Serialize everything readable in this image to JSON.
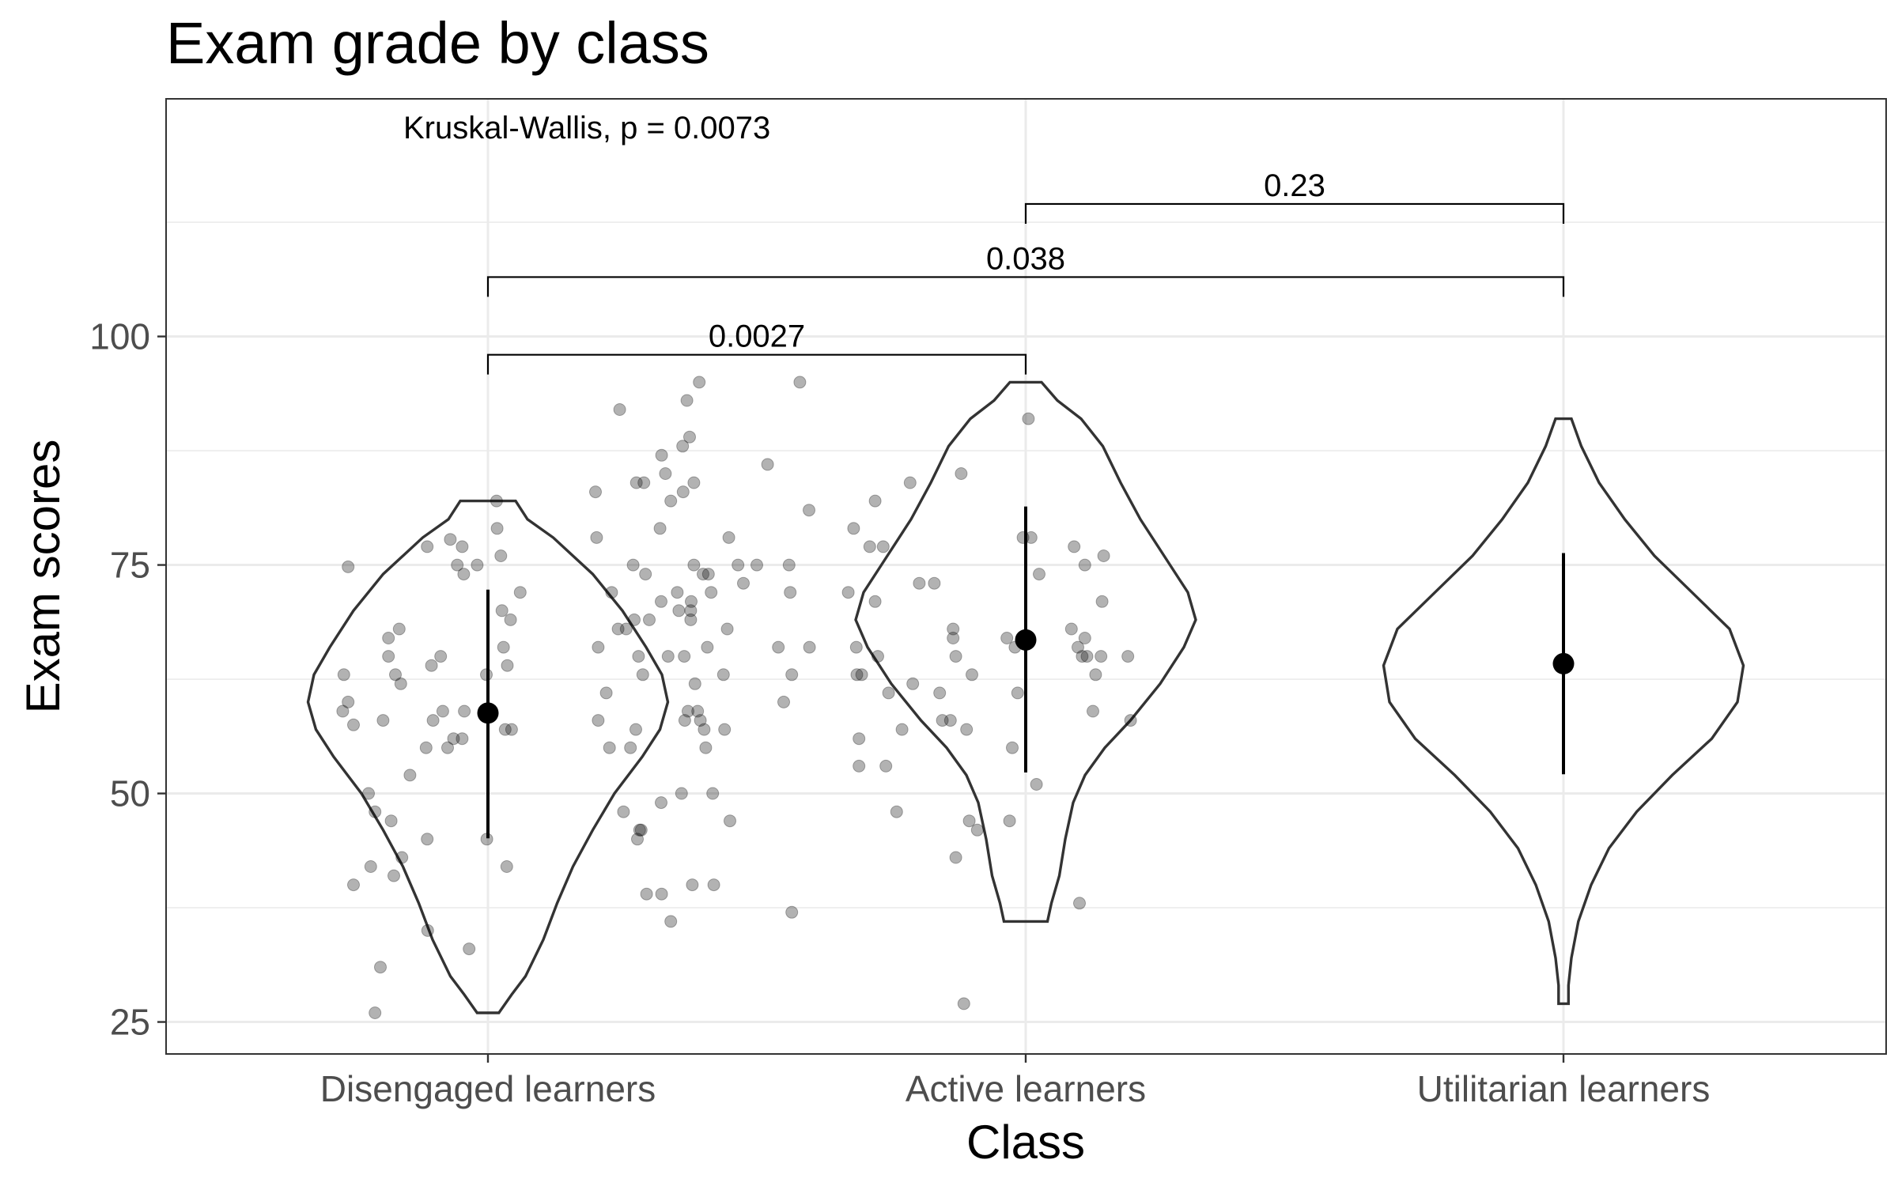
{
  "chart_data": {
    "type": "violin",
    "title": "Exam grade by class",
    "xlabel": "Class",
    "ylabel": "Exam scores",
    "ylim": [
      21.5,
      126
    ],
    "yticks": [
      25,
      50,
      75,
      100
    ],
    "grid": true,
    "categories": [
      "Disengaged learners",
      "Active learners",
      "Utilitarian learners"
    ],
    "test_label": "Kruskal-Wallis, p = 0.0073",
    "comparisons": [
      {
        "from": 0,
        "to": 1,
        "label": "0.0027",
        "y": 98
      },
      {
        "from": 0,
        "to": 2,
        "label": "0.038",
        "y": 106.5
      },
      {
        "from": 1,
        "to": 2,
        "label": "0.23",
        "y": 114.5
      }
    ],
    "summary": [
      {
        "mean": 58.8,
        "low": 45.1,
        "high": 72.3
      },
      {
        "mean": 66.8,
        "low": 52.3,
        "high": 81.4
      },
      {
        "mean": 64.2,
        "low": 52.1,
        "high": 76.3
      }
    ],
    "violins": [
      {
        "min": 26,
        "max": 82,
        "profile": [
          [
            26,
            0.055
          ],
          [
            28,
            0.12
          ],
          [
            30,
            0.19
          ],
          [
            34,
            0.28
          ],
          [
            38,
            0.35
          ],
          [
            42,
            0.43
          ],
          [
            46,
            0.53
          ],
          [
            50,
            0.64
          ],
          [
            54,
            0.78
          ],
          [
            57,
            0.87
          ],
          [
            60,
            0.91
          ],
          [
            63,
            0.88
          ],
          [
            66,
            0.8
          ],
          [
            70,
            0.68
          ],
          [
            74,
            0.53
          ],
          [
            78,
            0.33
          ],
          [
            80,
            0.2
          ],
          [
            82,
            0.14
          ]
        ]
      },
      {
        "min": 36,
        "max": 95,
        "profile": [
          [
            36,
            0.11
          ],
          [
            38,
            0.13
          ],
          [
            41,
            0.17
          ],
          [
            45,
            0.2
          ],
          [
            49,
            0.24
          ],
          [
            52,
            0.3
          ],
          [
            55,
            0.4
          ],
          [
            58,
            0.53
          ],
          [
            62,
            0.68
          ],
          [
            66,
            0.8
          ],
          [
            69,
            0.86
          ],
          [
            72,
            0.82
          ],
          [
            76,
            0.7
          ],
          [
            80,
            0.58
          ],
          [
            84,
            0.48
          ],
          [
            88,
            0.39
          ],
          [
            91,
            0.28
          ],
          [
            93,
            0.16
          ],
          [
            95,
            0.08
          ]
        ]
      },
      {
        "min": 27,
        "max": 91,
        "profile": [
          [
            27,
            0.025
          ],
          [
            29,
            0.025
          ],
          [
            32,
            0.04
          ],
          [
            36,
            0.075
          ],
          [
            40,
            0.14
          ],
          [
            44,
            0.23
          ],
          [
            48,
            0.37
          ],
          [
            52,
            0.55
          ],
          [
            56,
            0.75
          ],
          [
            60,
            0.88
          ],
          [
            64,
            0.91
          ],
          [
            68,
            0.84
          ],
          [
            72,
            0.65
          ],
          [
            76,
            0.46
          ],
          [
            80,
            0.31
          ],
          [
            84,
            0.18
          ],
          [
            88,
            0.09
          ],
          [
            91,
            0.04
          ]
        ]
      }
    ],
    "points": [
      [
        [
          0.24,
          74.8
        ],
        [
          0.232,
          63
        ],
        [
          0.23,
          59
        ],
        [
          0.24,
          60
        ],
        [
          0.25,
          57.5
        ],
        [
          0.25,
          40
        ],
        [
          0.278,
          50
        ],
        [
          0.282,
          42
        ],
        [
          0.29,
          48
        ],
        [
          0.3,
          31
        ],
        [
          0.29,
          26
        ],
        [
          0.305,
          58
        ],
        [
          0.315,
          67
        ],
        [
          0.315,
          65
        ],
        [
          0.32,
          47
        ],
        [
          0.325,
          41
        ],
        [
          0.328,
          63
        ],
        [
          0.335,
          68
        ],
        [
          0.338,
          62
        ],
        [
          0.34,
          43
        ],
        [
          0.355,
          52
        ],
        [
          0.387,
          77
        ],
        [
          0.385,
          55
        ],
        [
          0.387,
          45
        ],
        [
          0.388,
          35
        ],
        [
          0.395,
          64
        ],
        [
          0.398,
          58
        ],
        [
          0.412,
          65
        ],
        [
          0.416,
          59
        ],
        [
          0.425,
          55
        ],
        [
          0.43,
          77.8
        ],
        [
          0.436,
          56
        ],
        [
          0.443,
          75
        ],
        [
          0.452,
          77
        ],
        [
          0.452,
          56
        ],
        [
          0.455,
          74
        ],
        [
          0.456,
          59
        ],
        [
          0.465,
          33
        ],
        [
          0.48,
          75
        ],
        [
          0.497,
          63
        ],
        [
          0.498,
          45
        ],
        [
          0.516,
          82
        ],
        [
          0.517,
          79
        ],
        [
          0.524,
          76
        ],
        [
          0.526,
          70
        ],
        [
          0.529,
          66
        ],
        [
          0.532,
          57
        ],
        [
          0.535,
          42
        ],
        [
          0.536,
          64
        ],
        [
          0.542,
          69
        ],
        [
          0.544,
          57
        ],
        [
          0.56,
          72
        ]
      ],
      [
        [
          0.7,
          83
        ],
        [
          0.702,
          78
        ],
        [
          0.705,
          66
        ],
        [
          0.705,
          58
        ],
        [
          0.72,
          61
        ],
        [
          0.726,
          55
        ],
        [
          0.73,
          72
        ],
        [
          0.742,
          68
        ],
        [
          0.745,
          92
        ],
        [
          0.752,
          48
        ],
        [
          0.757,
          68
        ],
        [
          0.765,
          55
        ],
        [
          0.77,
          75
        ],
        [
          0.772,
          69
        ],
        [
          0.775,
          57
        ],
        [
          0.776,
          84
        ],
        [
          0.778,
          45
        ],
        [
          0.78,
          65
        ],
        [
          0.782,
          46
        ],
        [
          0.785,
          46
        ],
        [
          0.788,
          63
        ],
        [
          0.79,
          84
        ],
        [
          0.793,
          74
        ],
        [
          0.795,
          39
        ],
        [
          0.8,
          69
        ],
        [
          0.82,
          79
        ],
        [
          0.822,
          71
        ],
        [
          0.822,
          49
        ],
        [
          0.823,
          39
        ],
        [
          0.823,
          87
        ],
        [
          0.83,
          85
        ],
        [
          0.835,
          65
        ],
        [
          0.84,
          36
        ],
        [
          0.84,
          82
        ],
        [
          0.852,
          72
        ],
        [
          0.855,
          70
        ],
        [
          0.86,
          50
        ],
        [
          0.862,
          88
        ],
        [
          0.863,
          83
        ],
        [
          0.865,
          65
        ],
        [
          0.866,
          58
        ],
        [
          0.87,
          93
        ],
        [
          0.872,
          59
        ],
        [
          0.875,
          89
        ],
        [
          0.877,
          70
        ],
        [
          0.877,
          69
        ],
        [
          0.878,
          71
        ],
        [
          0.88,
          40
        ],
        [
          0.883,
          75
        ],
        [
          0.883,
          84
        ],
        [
          0.885,
          62
        ],
        [
          0.89,
          59
        ],
        [
          0.893,
          95
        ],
        [
          0.895,
          58
        ],
        [
          0.9,
          74
        ],
        [
          0.902,
          57
        ],
        [
          0.905,
          55
        ],
        [
          0.908,
          66
        ],
        [
          0.91,
          74
        ],
        [
          0.915,
          72
        ],
        [
          0.918,
          50
        ],
        [
          0.92,
          40
        ],
        [
          0.938,
          63
        ],
        [
          0.94,
          57
        ],
        [
          0.945,
          68
        ],
        [
          0.948,
          78
        ],
        [
          0.95,
          47
        ],
        [
          0.965,
          75
        ],
        [
          0.975,
          73
        ],
        [
          1.0,
          75
        ],
        [
          1.02,
          86
        ],
        [
          1.04,
          66
        ],
        [
          1.05,
          60
        ],
        [
          1.06,
          75
        ],
        [
          1.062,
          72
        ],
        [
          1.065,
          63
        ],
        [
          1.065,
          37
        ],
        [
          1.08,
          95
        ],
        [
          1.097,
          81
        ],
        [
          1.098,
          66
        ]
      ],
      [
        [
          1.17,
          72
        ],
        [
          1.18,
          79
        ],
        [
          1.185,
          66
        ],
        [
          1.186,
          63
        ],
        [
          1.19,
          56
        ],
        [
          1.19,
          53
        ],
        [
          1.195,
          63
        ],
        [
          1.21,
          77
        ],
        [
          1.22,
          82
        ],
        [
          1.22,
          71
        ],
        [
          1.225,
          65
        ],
        [
          1.235,
          77
        ],
        [
          1.24,
          53
        ],
        [
          1.245,
          61
        ],
        [
          1.26,
          48
        ],
        [
          1.27,
          57
        ],
        [
          1.285,
          84
        ],
        [
          1.29,
          62
        ],
        [
          1.302,
          73
        ],
        [
          1.33,
          73
        ],
        [
          1.34,
          61
        ],
        [
          1.345,
          58
        ],
        [
          1.36,
          58
        ],
        [
          1.365,
          67
        ],
        [
          1.365,
          68
        ],
        [
          1.37,
          43
        ],
        [
          1.37,
          65
        ],
        [
          1.38,
          85
        ],
        [
          1.385,
          27
        ],
        [
          1.39,
          57
        ],
        [
          1.395,
          47
        ],
        [
          1.4,
          63
        ],
        [
          1.41,
          46
        ],
        [
          1.465,
          67
        ],
        [
          1.47,
          47
        ],
        [
          1.475,
          55
        ],
        [
          1.48,
          66
        ],
        [
          1.485,
          61
        ],
        [
          1.495,
          78
        ],
        [
          1.505,
          91
        ],
        [
          1.51,
          78
        ],
        [
          1.52,
          51
        ],
        [
          1.525,
          74
        ],
        [
          1.585,
          68
        ],
        [
          1.59,
          77
        ],
        [
          1.597,
          66
        ],
        [
          1.6,
          38
        ],
        [
          1.605,
          65
        ],
        [
          1.61,
          67
        ],
        [
          1.61,
          75
        ],
        [
          1.614,
          65
        ],
        [
          1.625,
          59
        ],
        [
          1.63,
          63
        ],
        [
          1.64,
          65
        ],
        [
          1.642,
          71
        ],
        [
          1.645,
          76
        ],
        [
          1.69,
          65
        ],
        [
          1.695,
          58
        ]
      ]
    ]
  }
}
